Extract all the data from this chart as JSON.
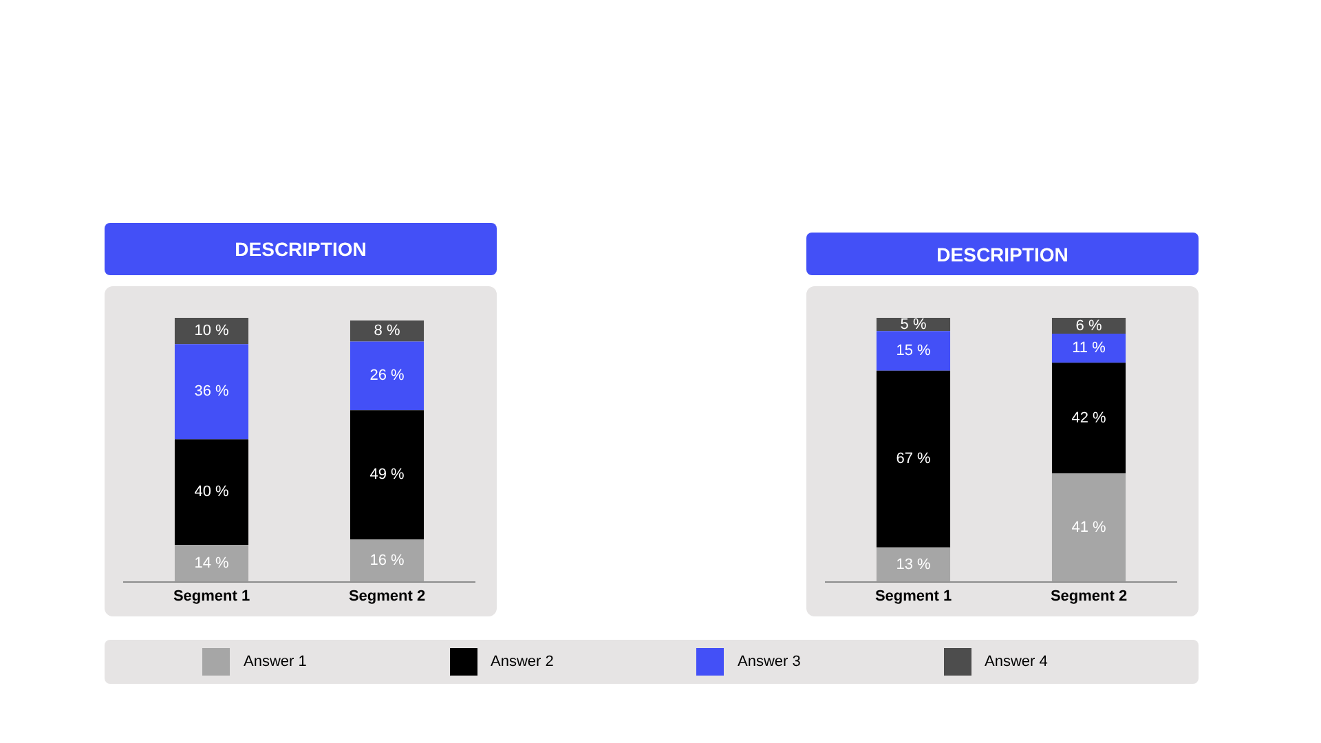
{
  "chart_data": [
    {
      "type": "bar",
      "title": "DESCRIPTION",
      "categories": [
        "Segment 1",
        "Segment 2"
      ],
      "stacked": true,
      "legend": "bottom",
      "series": [
        {
          "name": "Answer 1",
          "color": "#a6a6a6",
          "values": [
            14,
            16
          ],
          "value_labels": [
            "14 %",
            "16 %"
          ]
        },
        {
          "name": "Answer 2",
          "color": "#000000",
          "values": [
            40,
            49
          ],
          "value_labels": [
            "40 %",
            "49 %"
          ]
        },
        {
          "name": "Answer 3",
          "color": "#4350f7",
          "values": [
            36,
            26
          ],
          "value_labels": [
            "36 %",
            "26 %"
          ]
        },
        {
          "name": "Answer 4",
          "color": "#4d4d4d",
          "values": [
            10,
            8
          ],
          "value_labels": [
            "10 %",
            "8 %"
          ]
        }
      ]
    },
    {
      "type": "bar",
      "title": "DESCRIPTION",
      "categories": [
        "Segment 1",
        "Segment 2"
      ],
      "stacked": true,
      "series": [
        {
          "color": "#a6a6a6",
          "values": [
            13,
            41
          ],
          "value_labels": [
            "13 %",
            "41 %"
          ]
        },
        {
          "color": "#000000",
          "values": [
            67,
            42
          ],
          "value_labels": [
            "67 %",
            "42 %"
          ]
        },
        {
          "color": "#4350f7",
          "values": [
            15,
            11
          ],
          "value_labels": [
            "15 %",
            "11 %"
          ]
        },
        {
          "color": "#4d4d4d",
          "values": [
            5,
            6
          ],
          "value_labels": [
            "5 %",
            "6 %"
          ]
        }
      ]
    }
  ]
}
